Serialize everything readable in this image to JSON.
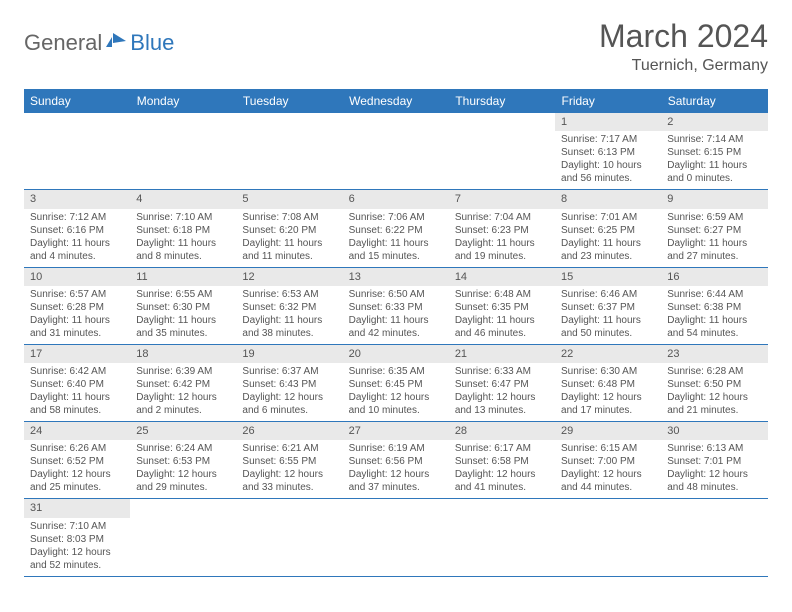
{
  "logo": {
    "general": "General",
    "blue": "Blue"
  },
  "title": "March 2024",
  "location": "Tuernich, Germany",
  "colors": {
    "header_bg": "#2f77bb",
    "header_text": "#ffffff",
    "daynum_bg": "#e9e9e9",
    "border": "#2f77bb",
    "text": "#555555",
    "logo_gray": "#666666",
    "logo_blue": "#2f77bb",
    "background": "#ffffff"
  },
  "typography": {
    "title_fontsize": 32,
    "location_fontsize": 16,
    "weekday_fontsize": 12,
    "daynum_fontsize": 11,
    "cell_fontsize": 10
  },
  "weekdays": [
    "Sunday",
    "Monday",
    "Tuesday",
    "Wednesday",
    "Thursday",
    "Friday",
    "Saturday"
  ],
  "weeks": [
    {
      "days": [
        null,
        null,
        null,
        null,
        null,
        {
          "num": "1",
          "sunrise": "7:17 AM",
          "sunset": "6:13 PM",
          "daylight": "10 hours and 56 minutes."
        },
        {
          "num": "2",
          "sunrise": "7:14 AM",
          "sunset": "6:15 PM",
          "daylight": "11 hours and 0 minutes."
        }
      ]
    },
    {
      "days": [
        {
          "num": "3",
          "sunrise": "7:12 AM",
          "sunset": "6:16 PM",
          "daylight": "11 hours and 4 minutes."
        },
        {
          "num": "4",
          "sunrise": "7:10 AM",
          "sunset": "6:18 PM",
          "daylight": "11 hours and 8 minutes."
        },
        {
          "num": "5",
          "sunrise": "7:08 AM",
          "sunset": "6:20 PM",
          "daylight": "11 hours and 11 minutes."
        },
        {
          "num": "6",
          "sunrise": "7:06 AM",
          "sunset": "6:22 PM",
          "daylight": "11 hours and 15 minutes."
        },
        {
          "num": "7",
          "sunrise": "7:04 AM",
          "sunset": "6:23 PM",
          "daylight": "11 hours and 19 minutes."
        },
        {
          "num": "8",
          "sunrise": "7:01 AM",
          "sunset": "6:25 PM",
          "daylight": "11 hours and 23 minutes."
        },
        {
          "num": "9",
          "sunrise": "6:59 AM",
          "sunset": "6:27 PM",
          "daylight": "11 hours and 27 minutes."
        }
      ]
    },
    {
      "days": [
        {
          "num": "10",
          "sunrise": "6:57 AM",
          "sunset": "6:28 PM",
          "daylight": "11 hours and 31 minutes."
        },
        {
          "num": "11",
          "sunrise": "6:55 AM",
          "sunset": "6:30 PM",
          "daylight": "11 hours and 35 minutes."
        },
        {
          "num": "12",
          "sunrise": "6:53 AM",
          "sunset": "6:32 PM",
          "daylight": "11 hours and 38 minutes."
        },
        {
          "num": "13",
          "sunrise": "6:50 AM",
          "sunset": "6:33 PM",
          "daylight": "11 hours and 42 minutes."
        },
        {
          "num": "14",
          "sunrise": "6:48 AM",
          "sunset": "6:35 PM",
          "daylight": "11 hours and 46 minutes."
        },
        {
          "num": "15",
          "sunrise": "6:46 AM",
          "sunset": "6:37 PM",
          "daylight": "11 hours and 50 minutes."
        },
        {
          "num": "16",
          "sunrise": "6:44 AM",
          "sunset": "6:38 PM",
          "daylight": "11 hours and 54 minutes."
        }
      ]
    },
    {
      "days": [
        {
          "num": "17",
          "sunrise": "6:42 AM",
          "sunset": "6:40 PM",
          "daylight": "11 hours and 58 minutes."
        },
        {
          "num": "18",
          "sunrise": "6:39 AM",
          "sunset": "6:42 PM",
          "daylight": "12 hours and 2 minutes."
        },
        {
          "num": "19",
          "sunrise": "6:37 AM",
          "sunset": "6:43 PM",
          "daylight": "12 hours and 6 minutes."
        },
        {
          "num": "20",
          "sunrise": "6:35 AM",
          "sunset": "6:45 PM",
          "daylight": "12 hours and 10 minutes."
        },
        {
          "num": "21",
          "sunrise": "6:33 AM",
          "sunset": "6:47 PM",
          "daylight": "12 hours and 13 minutes."
        },
        {
          "num": "22",
          "sunrise": "6:30 AM",
          "sunset": "6:48 PM",
          "daylight": "12 hours and 17 minutes."
        },
        {
          "num": "23",
          "sunrise": "6:28 AM",
          "sunset": "6:50 PM",
          "daylight": "12 hours and 21 minutes."
        }
      ]
    },
    {
      "days": [
        {
          "num": "24",
          "sunrise": "6:26 AM",
          "sunset": "6:52 PM",
          "daylight": "12 hours and 25 minutes."
        },
        {
          "num": "25",
          "sunrise": "6:24 AM",
          "sunset": "6:53 PM",
          "daylight": "12 hours and 29 minutes."
        },
        {
          "num": "26",
          "sunrise": "6:21 AM",
          "sunset": "6:55 PM",
          "daylight": "12 hours and 33 minutes."
        },
        {
          "num": "27",
          "sunrise": "6:19 AM",
          "sunset": "6:56 PM",
          "daylight": "12 hours and 37 minutes."
        },
        {
          "num": "28",
          "sunrise": "6:17 AM",
          "sunset": "6:58 PM",
          "daylight": "12 hours and 41 minutes."
        },
        {
          "num": "29",
          "sunrise": "6:15 AM",
          "sunset": "7:00 PM",
          "daylight": "12 hours and 44 minutes."
        },
        {
          "num": "30",
          "sunrise": "6:13 AM",
          "sunset": "7:01 PM",
          "daylight": "12 hours and 48 minutes."
        }
      ]
    },
    {
      "days": [
        {
          "num": "31",
          "sunrise": "7:10 AM",
          "sunset": "8:03 PM",
          "daylight": "12 hours and 52 minutes."
        },
        null,
        null,
        null,
        null,
        null,
        null
      ]
    }
  ],
  "labels": {
    "sunrise_prefix": "Sunrise: ",
    "sunset_prefix": "Sunset: ",
    "daylight_prefix": "Daylight: "
  }
}
